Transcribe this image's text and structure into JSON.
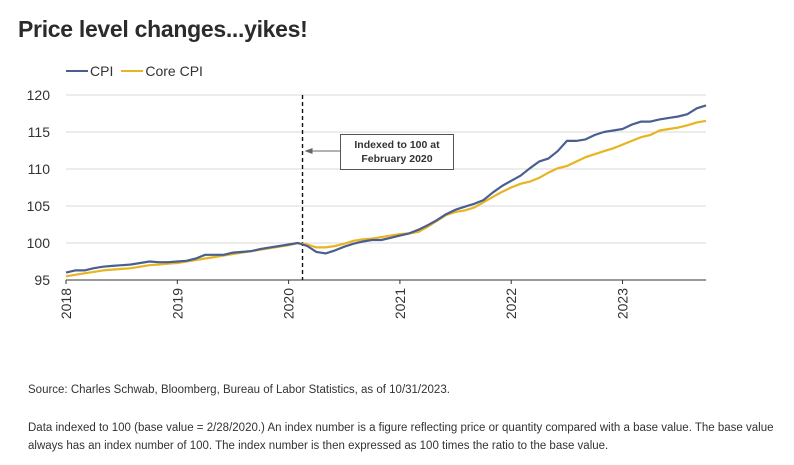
{
  "title": "Price level changes...yikes!",
  "source": "Source: Charles Schwab, Bloomberg, Bureau of Labor Statistics, as of 10/31/2023.",
  "note": "Data indexed to 100 (base value = 2/28/2020.) An index number is a figure reflecting price or quantity compared with a base value. The base value always has an index number of 100. The index number is then expressed as 100 times the ratio to the base value.",
  "colors": {
    "cpi": "#4a5f8f",
    "core": "#e8b422",
    "grid": "#d9d9d9",
    "axis": "#333333"
  },
  "chart_data": {
    "type": "line",
    "title": "Price level changes...yikes!",
    "legend": "top-left",
    "grid": true,
    "xlim": [
      2018.0,
      2023.75
    ],
    "ylim": [
      95,
      120
    ],
    "y_ticks": [
      95,
      100,
      105,
      110,
      115,
      120
    ],
    "x_ticks": [
      "2018",
      "2019",
      "2020",
      "2021",
      "2022",
      "2023"
    ],
    "annotation": {
      "text_line1": "Indexed to 100 at",
      "text_line2": "February 2020",
      "x": 2020.125
    },
    "series": [
      {
        "name": "CPI",
        "x": [
          2018.0,
          2018.083,
          2018.167,
          2018.25,
          2018.333,
          2018.417,
          2018.5,
          2018.583,
          2018.667,
          2018.75,
          2018.833,
          2018.917,
          2019.0,
          2019.083,
          2019.167,
          2019.25,
          2019.333,
          2019.417,
          2019.5,
          2019.583,
          2019.667,
          2019.75,
          2019.833,
          2019.917,
          2020.0,
          2020.083,
          2020.167,
          2020.25,
          2020.333,
          2020.417,
          2020.5,
          2020.583,
          2020.667,
          2020.75,
          2020.833,
          2020.917,
          2021.0,
          2021.083,
          2021.167,
          2021.25,
          2021.333,
          2021.417,
          2021.5,
          2021.583,
          2021.667,
          2021.75,
          2021.833,
          2021.917,
          2022.0,
          2022.083,
          2022.167,
          2022.25,
          2022.333,
          2022.417,
          2022.5,
          2022.583,
          2022.667,
          2022.75,
          2022.833,
          2022.917,
          2023.0,
          2023.083,
          2023.167,
          2023.25,
          2023.333,
          2023.417,
          2023.5,
          2023.583,
          2023.667,
          2023.75
        ],
        "values": [
          96.0,
          96.3,
          96.3,
          96.6,
          96.8,
          96.9,
          97.0,
          97.1,
          97.3,
          97.5,
          97.4,
          97.4,
          97.5,
          97.6,
          97.9,
          98.4,
          98.4,
          98.4,
          98.7,
          98.8,
          98.9,
          99.2,
          99.4,
          99.6,
          99.8,
          100.0,
          99.6,
          98.8,
          98.6,
          99.0,
          99.5,
          99.9,
          100.2,
          100.4,
          100.4,
          100.7,
          101.0,
          101.3,
          101.8,
          102.4,
          103.1,
          103.9,
          104.5,
          104.9,
          105.3,
          105.8,
          106.8,
          107.7,
          108.4,
          109.1,
          110.1,
          111.0,
          111.4,
          112.4,
          113.8,
          113.8,
          114.0,
          114.6,
          115.0,
          115.2,
          115.4,
          116.0,
          116.4,
          116.4,
          116.7,
          116.9,
          117.1,
          117.4,
          118.2,
          118.6
        ]
      },
      {
        "name": "Core CPI",
        "x": [
          2018.0,
          2018.083,
          2018.167,
          2018.25,
          2018.333,
          2018.417,
          2018.5,
          2018.583,
          2018.667,
          2018.75,
          2018.833,
          2018.917,
          2019.0,
          2019.083,
          2019.167,
          2019.25,
          2019.333,
          2019.417,
          2019.5,
          2019.583,
          2019.667,
          2019.75,
          2019.833,
          2019.917,
          2020.0,
          2020.083,
          2020.167,
          2020.25,
          2020.333,
          2020.417,
          2020.5,
          2020.583,
          2020.667,
          2020.75,
          2020.833,
          2020.917,
          2021.0,
          2021.083,
          2021.167,
          2021.25,
          2021.333,
          2021.417,
          2021.5,
          2021.583,
          2021.667,
          2021.75,
          2021.833,
          2021.917,
          2022.0,
          2022.083,
          2022.167,
          2022.25,
          2022.333,
          2022.417,
          2022.5,
          2022.583,
          2022.667,
          2022.75,
          2022.833,
          2022.917,
          2023.0,
          2023.083,
          2023.167,
          2023.25,
          2023.333,
          2023.417,
          2023.5,
          2023.583,
          2023.667,
          2023.75
        ],
        "values": [
          95.5,
          95.7,
          95.9,
          96.1,
          96.3,
          96.4,
          96.5,
          96.6,
          96.8,
          97.0,
          97.1,
          97.2,
          97.3,
          97.5,
          97.7,
          97.9,
          98.1,
          98.3,
          98.5,
          98.7,
          98.9,
          99.1,
          99.3,
          99.5,
          99.7,
          100.0,
          99.8,
          99.4,
          99.4,
          99.6,
          99.9,
          100.3,
          100.5,
          100.6,
          100.8,
          101.0,
          101.2,
          101.3,
          101.5,
          102.2,
          103.0,
          103.8,
          104.2,
          104.4,
          104.8,
          105.5,
          106.2,
          106.9,
          107.5,
          108.0,
          108.3,
          108.8,
          109.5,
          110.1,
          110.4,
          111.0,
          111.6,
          112.0,
          112.4,
          112.8,
          113.3,
          113.8,
          114.3,
          114.6,
          115.2,
          115.4,
          115.6,
          115.9,
          116.3,
          116.5
        ]
      }
    ]
  }
}
